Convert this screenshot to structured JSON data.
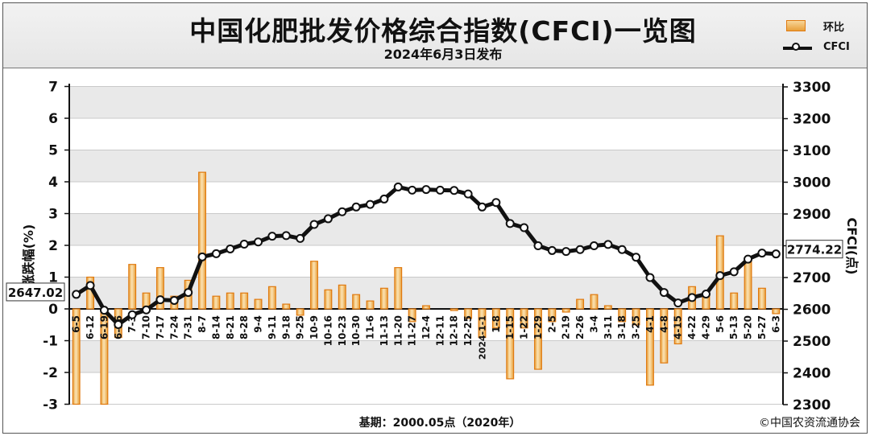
{
  "header": {
    "title": "中国化肥批发价格综合指数(CFCI)一览图",
    "subtitle": "2024年6月3日发布"
  },
  "legend": {
    "bar_label": "环比",
    "line_label": "CFCI"
  },
  "footer": {
    "base": "基期：2000.05点（2020年）",
    "copyright": "©中国农资流通协会"
  },
  "colors": {
    "bar_fill": "#f5c77a",
    "bar_edge": "#e07a10",
    "line": "#111111",
    "grid_band": "#e9e9e9"
  },
  "chart_data": {
    "type": "bar+line",
    "categories": [
      "6-5",
      "6-12",
      "6-19",
      "6-26",
      "7-3",
      "7-10",
      "7-17",
      "7-24",
      "7-31",
      "8-7",
      "8-14",
      "8-21",
      "8-28",
      "9-4",
      "9-11",
      "9-18",
      "9-25",
      "10-9",
      "10-16",
      "10-23",
      "10-30",
      "11-6",
      "11-13",
      "11-20",
      "11-27",
      "12-4",
      "12-11",
      "12-18",
      "12-25",
      "2024-1-1",
      "1-8",
      "1-15",
      "1-22",
      "1-29",
      "2-5",
      "2-19",
      "2-26",
      "3-4",
      "3-11",
      "3-18",
      "3-25",
      "4-1",
      "4-8",
      "4-15",
      "4-22",
      "4-29",
      "5-6",
      "5-13",
      "5-20",
      "5-27",
      "6-3"
    ],
    "series": [
      {
        "name": "环比",
        "axis": "left",
        "values": [
          -3.0,
          1.0,
          -3.0,
          -0.9,
          1.4,
          0.5,
          1.3,
          0.4,
          0.9,
          4.3,
          0.4,
          0.5,
          0.5,
          0.3,
          0.7,
          0.15,
          -0.2,
          1.5,
          0.6,
          0.75,
          0.45,
          0.25,
          0.65,
          1.3,
          -0.4,
          0.1,
          0.0,
          -0.05,
          -0.3,
          -0.9,
          -0.6,
          -2.2,
          -0.6,
          -1.9,
          -0.4,
          -0.1,
          0.3,
          0.45,
          0.1,
          -0.4,
          -0.5,
          -2.4,
          -1.7,
          -1.1,
          0.7,
          0.4,
          2.3,
          0.5,
          1.6,
          0.65,
          -0.15
        ]
      },
      {
        "name": "CFCI",
        "axis": "right",
        "values": [
          2647.02,
          2675,
          2597,
          2552,
          2583,
          2598,
          2630,
          2628,
          2653,
          2765,
          2775,
          2790,
          2805,
          2812,
          2830,
          2832,
          2823,
          2867,
          2885,
          2907,
          2922,
          2930,
          2947,
          2985,
          2975,
          2977,
          2975,
          2974,
          2963,
          2922,
          2936,
          2870,
          2857,
          2800,
          2785,
          2782,
          2788,
          2800,
          2804,
          2788,
          2764,
          2700,
          2653,
          2620,
          2637,
          2648,
          2706,
          2718,
          2758,
          2777,
          2774.22
        ]
      }
    ],
    "y_left": {
      "label": "涨跌幅(%)",
      "min": -3,
      "max": 7,
      "ticks": [
        "7",
        "6",
        "5",
        "4",
        "3",
        "2",
        "1",
        "0",
        "-1",
        "-2",
        "-3"
      ]
    },
    "y_right": {
      "label": "CFCI(点)",
      "min": 2300,
      "max": 3300,
      "ticks": [
        "3300",
        "3200",
        "3100",
        "3000",
        "2900",
        "2800",
        "2700",
        "2600",
        "2500",
        "2400",
        "2300"
      ]
    },
    "callouts": {
      "first": "2647.02",
      "last": "2774.22"
    }
  }
}
